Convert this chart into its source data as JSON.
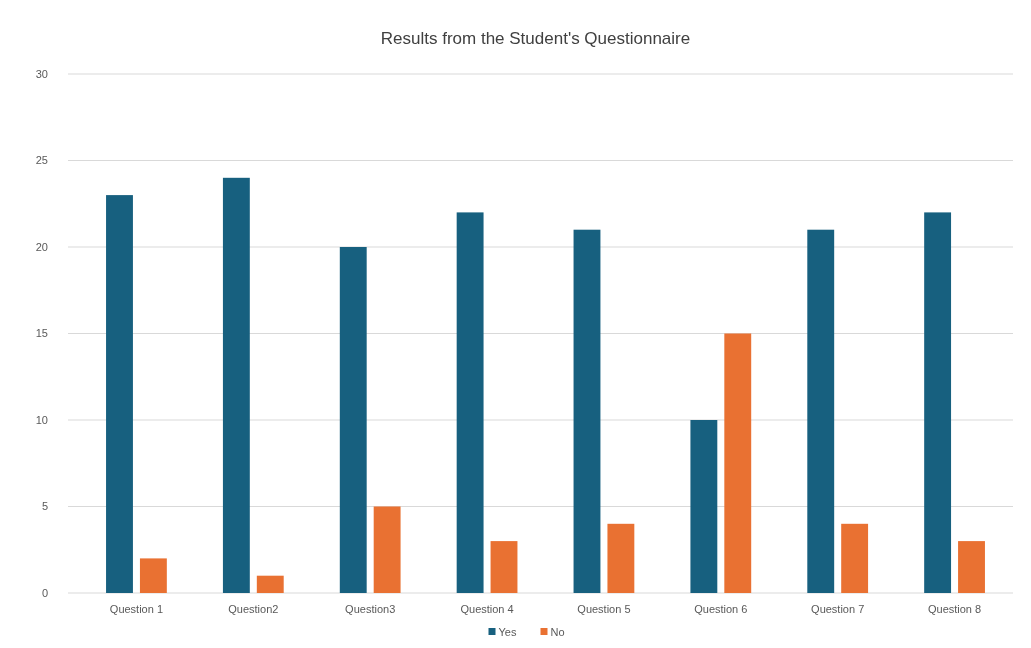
{
  "chart_data": {
    "type": "bar",
    "title": "Results from the Student's Questionnaire",
    "categories": [
      "Question 1",
      "Question2",
      "Question3",
      "Question 4",
      "Question 5",
      "Question 6",
      "Question 7",
      "Question 8"
    ],
    "series": [
      {
        "name": "Yes",
        "color": "#17607f",
        "values": [
          23,
          24,
          20,
          22,
          21,
          10,
          21,
          22
        ]
      },
      {
        "name": "No",
        "color": "#e97132",
        "values": [
          2,
          1,
          5,
          3,
          4,
          15,
          4,
          3
        ]
      }
    ],
    "ylim": [
      0,
      30
    ],
    "yticks": [
      0,
      5,
      10,
      15,
      20,
      25,
      30
    ],
    "grid": "y",
    "legend": "bottom"
  }
}
